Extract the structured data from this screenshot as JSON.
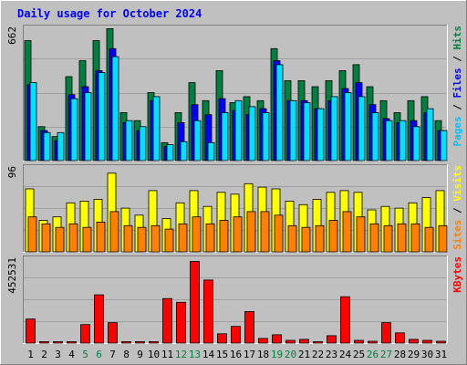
{
  "chart_data": {
    "type": "bar",
    "title": "Daily usage for October 2024",
    "categories": [
      "1",
      "2",
      "3",
      "4",
      "5",
      "6",
      "7",
      "8",
      "9",
      "10",
      "11",
      "12",
      "13",
      "14",
      "15",
      "16",
      "17",
      "18",
      "19",
      "20",
      "21",
      "22",
      "23",
      "24",
      "25",
      "26",
      "27",
      "28",
      "29",
      "30",
      "31"
    ],
    "weekend_days": [
      "5",
      "6",
      "12",
      "13",
      "19",
      "20",
      "26",
      "27"
    ],
    "panels": [
      {
        "id": "hits",
        "ymax": 662,
        "ymax_label": "662",
        "ylabel_parts": [
          "Pages",
          "Files",
          "Hits"
        ],
        "ylabel_separator": " / ",
        "series": [
          {
            "name": "Hits",
            "color": "#008040",
            "values": [
              600,
              170,
              120,
              420,
              500,
              600,
              660,
              240,
              200,
              340,
              90,
              240,
              390,
              300,
              450,
              290,
              320,
              300,
              560,
              400,
              400,
              370,
              400,
              450,
              480,
              370,
              300,
              240,
              300,
              320,
              200
            ]
          },
          {
            "name": "Files",
            "color": "#0000ff",
            "values": [
              380,
              150,
              100,
              330,
              370,
              450,
              560,
              190,
              150,
              300,
              70,
              190,
              280,
              230,
              310,
              250,
              230,
              260,
              500,
              300,
              300,
              260,
              300,
              360,
              390,
              280,
              210,
              190,
              200,
              240,
              150
            ]
          },
          {
            "name": "Pages",
            "color": "#00e0ff",
            "values": [
              390,
              140,
              140,
              310,
              340,
              440,
              520,
              200,
              170,
              320,
              80,
              95,
              200,
              90,
              240,
              300,
              270,
              240,
              480,
              300,
              290,
              260,
              320,
              340,
              320,
              240,
              200,
              200,
              170,
              260,
              150
            ]
          }
        ]
      },
      {
        "id": "visits",
        "ymax": 96,
        "ymax_label": "96",
        "ylabel_parts": [
          "Sites",
          "Visits"
        ],
        "ylabel_separator": " / ",
        "series": [
          {
            "name": "Visits",
            "color": "#ffff00",
            "values": [
              72,
              36,
              40,
              56,
              58,
              60,
              90,
              50,
              42,
              70,
              38,
              56,
              70,
              52,
              68,
              66,
              78,
              74,
              72,
              58,
              54,
              60,
              68,
              70,
              68,
              48,
              52,
              50,
              56,
              62,
              70
            ]
          },
          {
            "name": "Sites",
            "color": "#ff8000",
            "values": [
              40,
              32,
              28,
              32,
              28,
              34,
              46,
              30,
              28,
              30,
              26,
              32,
              40,
              32,
              36,
              40,
              46,
              46,
              42,
              30,
              28,
              30,
              36,
              46,
              40,
              32,
              30,
              32,
              32,
              28,
              30
            ]
          }
        ]
      },
      {
        "id": "kbytes",
        "ymax": 452531,
        "ymax_label": "452531",
        "ylabel_parts": [
          "KBytes"
        ],
        "ylabel_separator": "",
        "series": [
          {
            "name": "KBytes",
            "color": "#ff0000",
            "values": [
              130000,
              8000,
              8000,
              8000,
              100000,
              260000,
              110000,
              8000,
              8000,
              8000,
              240000,
              220000,
              440000,
              340000,
              50000,
              90000,
              170000,
              25000,
              45000,
              15000,
              20000,
              8000,
              40000,
              250000,
              15000,
              10000,
              110000,
              55000,
              20000,
              15000,
              10000
            ]
          }
        ]
      }
    ],
    "colors": {
      "background": "#c0c0c0",
      "plot_bg": "#c0c0c0",
      "title": "#0000ff",
      "weekday_label": "#000000",
      "weekend_label": "#008040",
      "grid": "#a0a0a0"
    }
  }
}
